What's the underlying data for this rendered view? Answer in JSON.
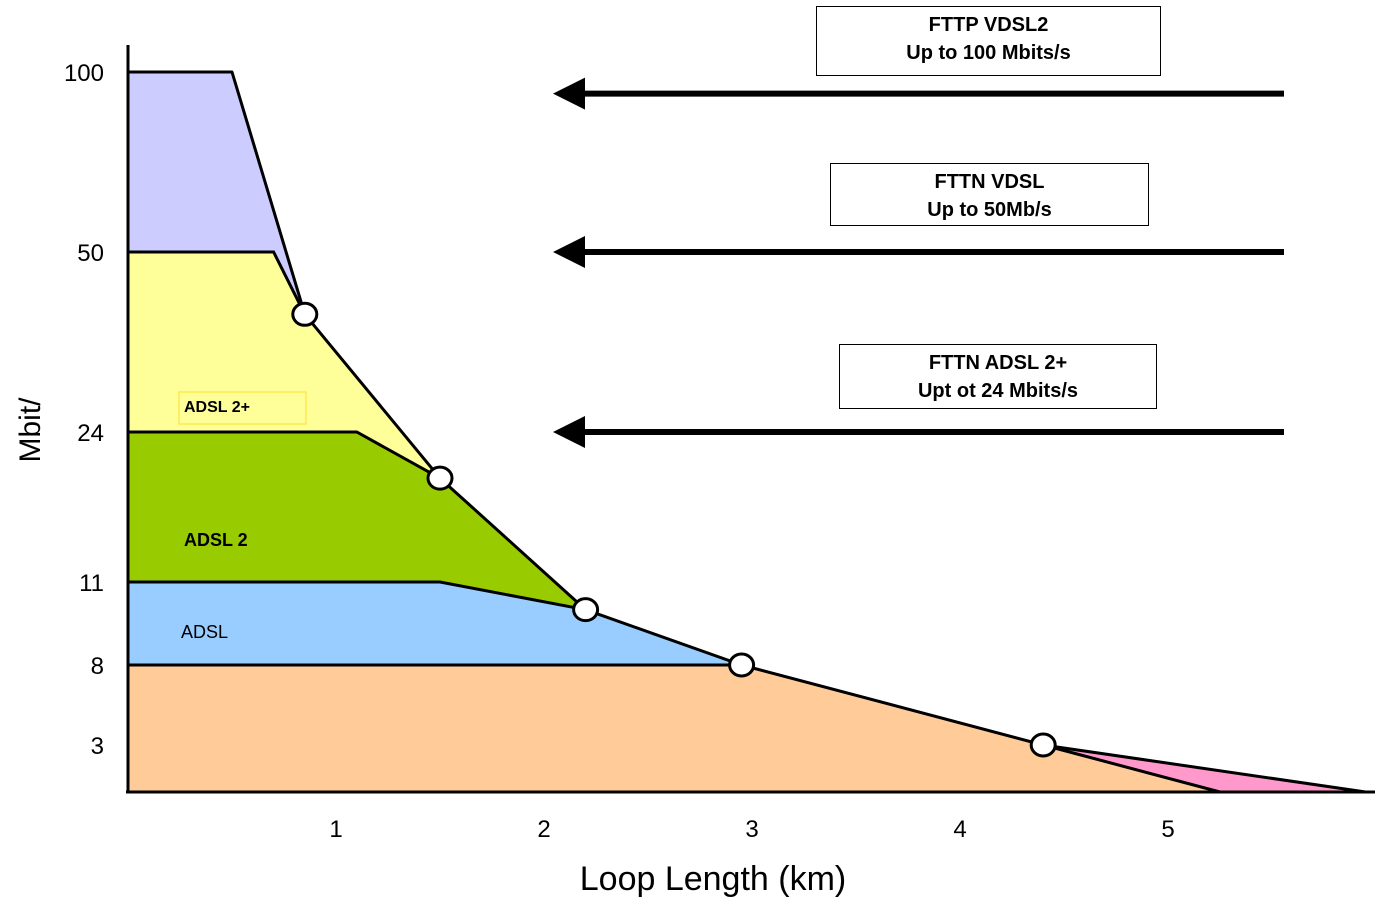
{
  "chart_data": {
    "type": "area",
    "xlabel": "Loop Length (km)",
    "ylabel": "Mbit/",
    "x_ticks": [
      "1",
      "2",
      "3",
      "4",
      "5"
    ],
    "y_ticks": [
      "100",
      "50",
      "24",
      "11",
      "8",
      "3"
    ],
    "series": [
      {
        "name": "ADSL 2+",
        "fill": "#FFFF99",
        "label_box": true,
        "points": [
          [
            0,
            50
          ],
          [
            0.7,
            50
          ],
          [
            0.85,
            41
          ],
          [
            1.5,
            20
          ],
          [
            2.2,
            10
          ],
          [
            1.5,
            11
          ],
          [
            0,
            11
          ]
        ]
      },
      {
        "name": "ADSL 2",
        "fill": "#99CC00",
        "points": [
          [
            0,
            24
          ],
          [
            1.1,
            24
          ],
          [
            1.5,
            20
          ],
          [
            2.2,
            10
          ],
          [
            1.5,
            11
          ],
          [
            0,
            11
          ]
        ]
      },
      {
        "name": "ADSL",
        "fill": "#99CCFF",
        "points": [
          [
            0,
            11
          ],
          [
            1.5,
            11
          ],
          [
            2.2,
            10
          ],
          [
            2.95,
            8
          ],
          [
            0,
            8
          ]
        ]
      },
      {
        "name": "",
        "fill": "#CCCCFF",
        "points": [
          [
            0,
            100
          ],
          [
            0.5,
            100
          ],
          [
            0.85,
            41
          ],
          [
            0.7,
            50
          ],
          [
            0,
            50
          ]
        ]
      },
      {
        "name": "",
        "fill": "#FFCC99",
        "points": [
          [
            0,
            8
          ],
          [
            2.95,
            8
          ],
          [
            4.4,
            3
          ],
          [
            5.25,
            0
          ],
          [
            0,
            0
          ]
        ]
      },
      {
        "name": "",
        "fill": "#FF99CC",
        "points": [
          [
            4.4,
            3
          ],
          [
            5.95,
            0
          ],
          [
            5.25,
            0
          ]
        ]
      }
    ],
    "boundary_line": [
      [
        0,
        100
      ],
      [
        0.5,
        100
      ],
      [
        0.85,
        41
      ],
      [
        1.5,
        20
      ],
      [
        2.2,
        10
      ],
      [
        2.95,
        8
      ],
      [
        4.4,
        3
      ],
      [
        5.95,
        0
      ]
    ],
    "markers": [
      [
        0.85,
        41
      ],
      [
        1.5,
        20
      ],
      [
        2.2,
        10
      ],
      [
        2.95,
        8
      ],
      [
        4.4,
        3
      ]
    ],
    "annotations": [
      {
        "lines": [
          "FTTP  VDSL2",
          "Up to 100 Mbits/s"
        ],
        "arrow_y": 94
      },
      {
        "lines": [
          "FTTN VDSL",
          "Up to 50Mb/s"
        ],
        "arrow_y": 50
      },
      {
        "lines": [
          "FTTN ADSL 2+",
          "Upt ot 24 Mbits/s"
        ],
        "arrow_y": 24
      }
    ]
  }
}
